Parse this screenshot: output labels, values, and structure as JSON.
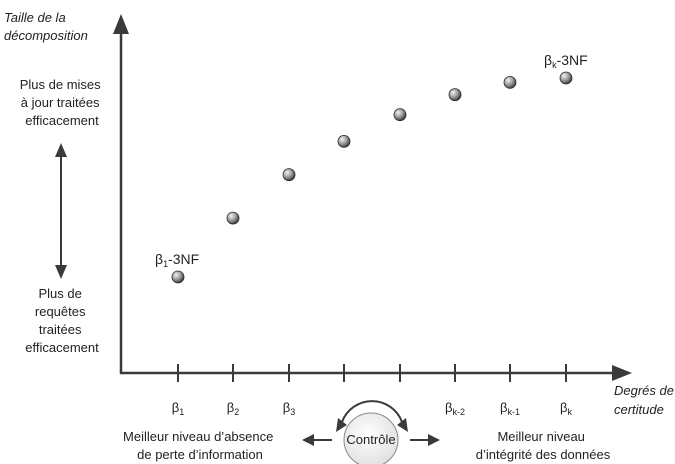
{
  "axes": {
    "y_title_lines": [
      "Taille de la",
      "décomposition"
    ],
    "x_title_lines": [
      "Degrés de",
      "certitude"
    ]
  },
  "left_annotations": {
    "top_lines": [
      "Plus de mises",
      "à jour traitées",
      "efficacement"
    ],
    "bottom_lines": [
      "Plus de",
      "requêtes",
      "traitées",
      "efficacement"
    ]
  },
  "tick_labels": [
    {
      "base": "β",
      "sub": "1"
    },
    {
      "base": "β",
      "sub": "2"
    },
    {
      "base": "β",
      "sub": "3"
    },
    {
      "base": "",
      "sub": ""
    },
    {
      "base": "",
      "sub": ""
    },
    {
      "base": "β",
      "sub": "k-2"
    },
    {
      "base": "β",
      "sub": "k-1"
    },
    {
      "base": "β",
      "sub": "k"
    }
  ],
  "point_labels": {
    "first": {
      "base": "β",
      "sub": "1",
      "suffix": "-3NF"
    },
    "last": {
      "base": "β",
      "sub": "k",
      "suffix": "-3NF"
    }
  },
  "points_level": [
    0.0,
    0.265,
    0.46,
    0.61,
    0.73,
    0.82,
    0.875,
    0.895
  ],
  "bottom": {
    "control_label": "Contrôle",
    "left_lines": [
      "Meilleur niveau d’absence",
      "de perte d’information"
    ],
    "right_lines": [
      "Meilleur niveau",
      "d’intégrité des données"
    ]
  },
  "colors": {
    "axis": "#3a3a3a",
    "point_light": "#d6d6d6",
    "point_dark": "#3a3a3a",
    "control_fill": "#eeeeee"
  }
}
